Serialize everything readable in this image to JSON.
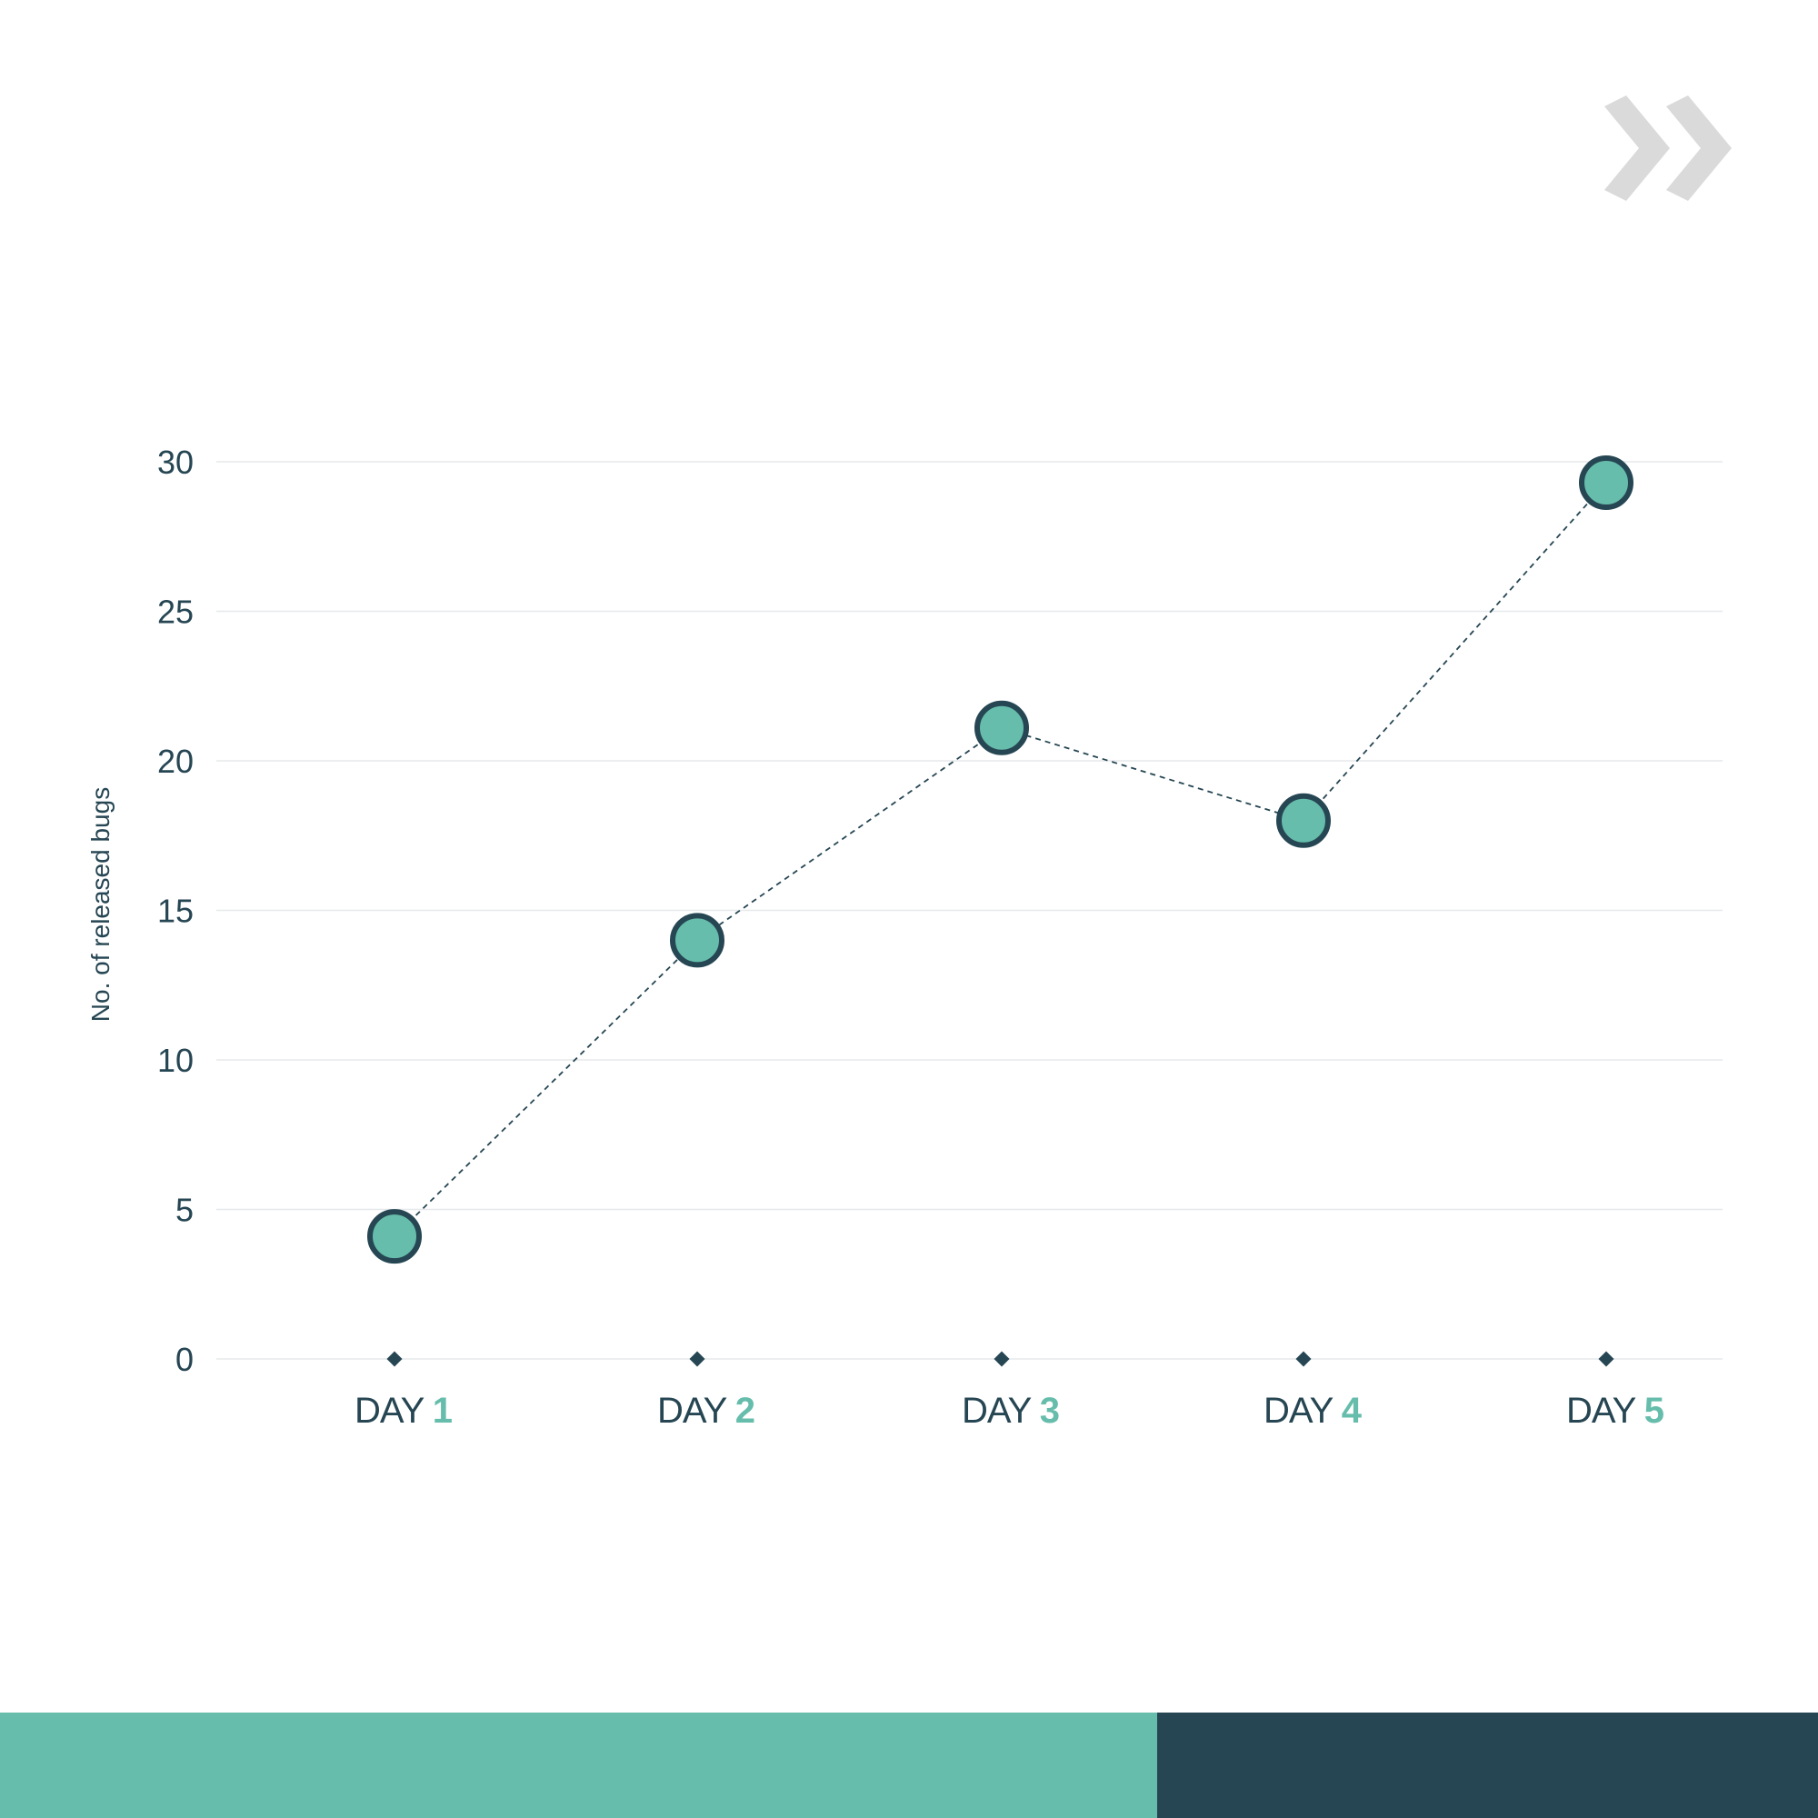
{
  "colors": {
    "accent": "#66bdab",
    "dark": "#264653",
    "logo": "#dadada",
    "grid": "#e6e8ea"
  },
  "logo_icon": "double-chevron-right-icon",
  "chart_data": {
    "type": "line",
    "title": "",
    "xlabel": "",
    "ylabel": "No. of released bugs",
    "ylim": [
      0,
      30
    ],
    "yticks": [
      0,
      5,
      10,
      15,
      20,
      25,
      30
    ],
    "grid": true,
    "categories": [
      {
        "word": "DAY",
        "num": "1"
      },
      {
        "word": "DAY",
        "num": "2"
      },
      {
        "word": "DAY",
        "num": "3"
      },
      {
        "word": "DAY",
        "num": "4"
      },
      {
        "word": "DAY",
        "num": "5"
      }
    ],
    "values": [
      4.1,
      14,
      21.1,
      18,
      29.3
    ]
  }
}
